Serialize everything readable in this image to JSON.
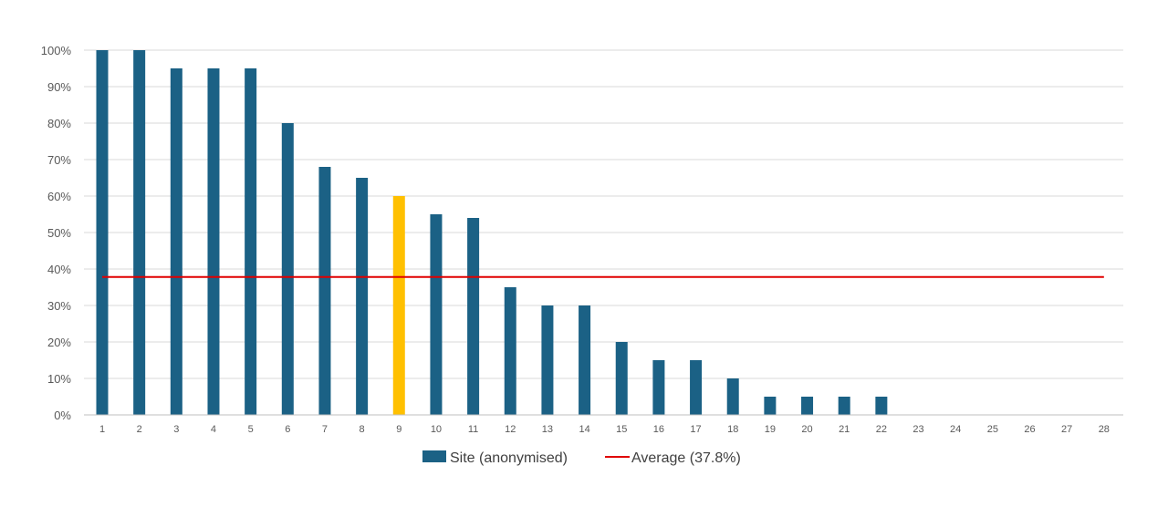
{
  "chart_data": {
    "type": "bar",
    "title": "",
    "xlabel": "",
    "ylabel": "",
    "categories": [
      "1",
      "2",
      "3",
      "4",
      "5",
      "6",
      "7",
      "8",
      "9",
      "10",
      "11",
      "12",
      "13",
      "14",
      "15",
      "16",
      "17",
      "18",
      "19",
      "20",
      "21",
      "22",
      "23",
      "24",
      "25",
      "26",
      "27",
      "28"
    ],
    "series": [
      {
        "name": "Site (anonymised)",
        "values": [
          100,
          100,
          95,
          95,
          95,
          80,
          68,
          65,
          60,
          55,
          54,
          35,
          30,
          30,
          20,
          15,
          15,
          10,
          5,
          5,
          5,
          5,
          0,
          0,
          0,
          0,
          0,
          0
        ]
      }
    ],
    "highlight_index": 8,
    "average": {
      "name": "Average (37.8%)",
      "value": 37.8
    },
    "ylim": [
      0,
      100
    ],
    "y_ticks": [
      "0%",
      "10%",
      "20%",
      "30%",
      "40%",
      "50%",
      "60%",
      "70%",
      "80%",
      "90%",
      "100%"
    ],
    "grid": true,
    "legend_position": "bottom",
    "colors": {
      "bar": "#1b6185",
      "highlight": "#ffc000",
      "average": "#e00000",
      "grid": "#d9d9d9"
    }
  }
}
